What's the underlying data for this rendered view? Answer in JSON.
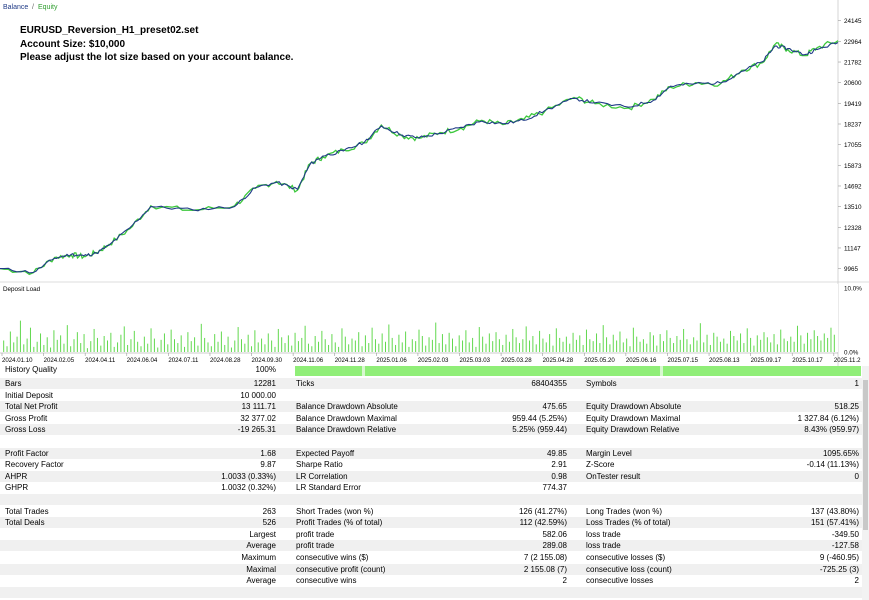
{
  "chart_data": [
    {
      "type": "line",
      "name_label": "balance-equity-chart",
      "legend": [
        "Balance",
        "Equity"
      ],
      "legend_colors": [
        "#1f3a86",
        "#3cc83c"
      ],
      "legend_separator": "/",
      "y_ticks": [
        9965,
        11147,
        12328,
        13510,
        14692,
        15873,
        17055,
        18237,
        19419,
        20600,
        21782,
        22964,
        24145
      ],
      "ylim": [
        9200,
        24700
      ],
      "x_labels": [
        "2024.01.10",
        "2024.02.05",
        "2024.04.11",
        "2024.06.04",
        "2024.07.11",
        "2024.08.28",
        "2024.09.30",
        "2024.11.06",
        "2024.11.28",
        "2025.01.06",
        "2025.02.03",
        "2025.03.03",
        "2025.03.28",
        "2025.04.28",
        "2025.05.20",
        "2025.06.16",
        "2025.07.15",
        "2025.08.13",
        "2025.09.17",
        "2025.10.17",
        "2025.11.2"
      ],
      "balance": [
        [
          0,
          9965
        ],
        [
          0.04,
          9750
        ],
        [
          0.065,
          10560
        ],
        [
          0.085,
          10780
        ],
        [
          0.1,
          10700
        ],
        [
          0.115,
          10850
        ],
        [
          0.13,
          11300
        ],
        [
          0.155,
          12300
        ],
        [
          0.18,
          13510
        ],
        [
          0.23,
          13330
        ],
        [
          0.28,
          13520
        ],
        [
          0.305,
          14600
        ],
        [
          0.33,
          14900
        ],
        [
          0.355,
          14500
        ],
        [
          0.37,
          15930
        ],
        [
          0.385,
          16400
        ],
        [
          0.41,
          16700
        ],
        [
          0.435,
          17200
        ],
        [
          0.455,
          18130
        ],
        [
          0.48,
          17600
        ],
        [
          0.5,
          17450
        ],
        [
          0.525,
          17700
        ],
        [
          0.55,
          18050
        ],
        [
          0.575,
          18400
        ],
        [
          0.6,
          18250
        ],
        [
          0.625,
          18450
        ],
        [
          0.65,
          19000
        ],
        [
          0.685,
          19700
        ],
        [
          0.71,
          19450
        ],
        [
          0.75,
          19200
        ],
        [
          0.78,
          19600
        ],
        [
          0.8,
          20400
        ],
        [
          0.83,
          20550
        ],
        [
          0.86,
          20580
        ],
        [
          0.885,
          21250
        ],
        [
          0.91,
          21800
        ],
        [
          0.925,
          22700
        ],
        [
          0.94,
          22550
        ],
        [
          0.96,
          22200
        ],
        [
          0.975,
          22500
        ],
        [
          1.0,
          22900
        ]
      ],
      "equity": [
        [
          0,
          9965
        ],
        [
          0.04,
          9740
        ],
        [
          0.065,
          10600
        ],
        [
          0.085,
          10750
        ],
        [
          0.1,
          10650
        ],
        [
          0.115,
          10880
        ],
        [
          0.13,
          11350
        ],
        [
          0.155,
          12250
        ],
        [
          0.18,
          13560
        ],
        [
          0.23,
          13300
        ],
        [
          0.28,
          13560
        ],
        [
          0.305,
          14560
        ],
        [
          0.33,
          14950
        ],
        [
          0.355,
          14450
        ],
        [
          0.37,
          15970
        ],
        [
          0.385,
          16350
        ],
        [
          0.41,
          16760
        ],
        [
          0.435,
          17150
        ],
        [
          0.455,
          18180
        ],
        [
          0.48,
          17550
        ],
        [
          0.5,
          17420
        ],
        [
          0.525,
          17750
        ],
        [
          0.55,
          18000
        ],
        [
          0.575,
          18450
        ],
        [
          0.6,
          18200
        ],
        [
          0.625,
          18500
        ],
        [
          0.65,
          18950
        ],
        [
          0.685,
          19750
        ],
        [
          0.71,
          19400
        ],
        [
          0.75,
          19150
        ],
        [
          0.78,
          19650
        ],
        [
          0.8,
          20350
        ],
        [
          0.83,
          20600
        ],
        [
          0.86,
          20540
        ],
        [
          0.885,
          21300
        ],
        [
          0.91,
          21750
        ],
        [
          0.925,
          22800
        ],
        [
          0.94,
          22500
        ],
        [
          0.96,
          22150
        ],
        [
          0.975,
          22600
        ],
        [
          1.0,
          23000
        ]
      ]
    },
    {
      "type": "bar",
      "name_label": "deposit-load-chart",
      "title": "Deposit Load",
      "y_ticks": [
        "10.0%",
        "0.0%"
      ],
      "ylim": [
        0,
        10
      ],
      "bar_color": "#62d84e",
      "values": [
        1.8,
        0.9,
        3.2,
        1.5,
        2.4,
        4.9,
        1.2,
        2.1,
        3.8,
        0.8,
        1.6,
        2.9,
        1.1,
        2.3,
        0.7,
        3.4,
        1.9,
        2.6,
        1.3,
        4.2,
        0.9,
        2.0,
        3.1,
        1.4,
        2.8,
        0.6,
        1.7,
        3.6,
        2.2,
        1.0,
        2.5,
        1.8,
        3.0,
        0.8,
        1.5,
        2.7,
        4.0,
        1.1,
        2.0,
        3.3,
        1.6,
        0.9,
        2.4,
        1.3,
        3.7,
        2.1,
        0.7,
        1.9,
        2.9,
        1.2,
        3.5,
        2.0,
        1.4,
        2.6,
        0.8,
        3.1,
        1.7,
        2.3,
        1.0,
        4.4,
        2.2,
        1.5,
        0.9,
        2.8,
        1.6,
        3.2,
        1.1,
        2.4,
        0.7,
        1.8,
        3.9,
        2.0,
        1.3,
        2.7,
        0.9,
        3.4,
        1.5,
        2.1,
        1.2,
        2.9,
        1.8,
        0.8,
        3.6,
        2.3,
        1.4,
        2.6,
        1.0,
        3.0,
        1.7,
        2.2,
        4.1,
        1.3,
        0.9,
        2.5,
        1.6,
        3.3,
        2.0,
        1.1,
        2.8,
        1.5,
        0.8,
        3.7,
        2.4,
        1.2,
        2.1,
        1.8,
        3.1,
        0.9,
        2.6,
        1.4,
        3.8,
        2.0,
        1.3,
        2.9,
        1.6,
        4.3,
        2.2,
        1.1,
        2.7,
        1.5,
        3.2,
        0.8,
        2.0,
        1.7,
        3.5,
        2.5,
        1.0,
        2.3,
        1.9,
        4.6,
        1.4,
        2.8,
        1.2,
        3.0,
        2.1,
        0.9,
        2.6,
        1.8,
        3.4,
        1.5,
        2.2,
        0.8,
        3.9,
        2.4,
        1.3,
        2.9,
        1.7,
        3.1,
        2.0,
        1.1,
        2.7,
        1.6,
        3.6,
        2.3,
        1.4,
        2.0,
        4.0,
        1.8,
        2.5,
        1.2,
        3.3,
        2.1,
        1.5,
        2.8,
        1.0,
        3.7,
        2.2,
        1.6,
        2.4,
        1.3,
        3.0,
        1.9,
        2.6,
        1.1,
        3.5,
        2.0,
        1.7,
        2.9,
        1.4,
        4.2,
        2.3,
        1.2,
        2.7,
        1.8,
        3.2,
        1.5,
        2.1,
        0.9,
        3.8,
        2.4,
        1.6,
        2.0,
        1.3,
        3.1,
        2.6,
        1.0,
        2.8,
        1.7,
        3.4,
        2.2,
        1.4,
        2.5,
        1.9,
        3.6,
        2.0,
        1.2,
        2.3,
        1.8,
        4.5,
        1.5,
        2.7,
        1.1,
        3.0,
        2.4,
        1.6,
        2.1,
        1.3,
        3.3,
        2.5,
        1.8,
        2.9,
        1.4,
        3.7,
        2.2,
        1.0,
        2.6,
        1.9,
        3.1,
        2.3,
        1.5,
        2.8,
        1.2,
        3.5,
        2.1,
        1.7,
        2.4,
        1.6,
        4.1,
        2.6,
        1.3,
        3.0,
        2.0,
        3.4,
        2.5,
        1.8,
        2.9,
        2.2,
        3.8,
        2.7
      ]
    }
  ],
  "chart_header": {
    "legend_balance": "Balance",
    "legend_sep": "/",
    "legend_equity": "Equity"
  },
  "overlay": {
    "line1": "EURUSD_Reversion_H1_preset02.set",
    "line2": "Account Size: $10,000",
    "line3": "Please adjust the lot size based on your account balance."
  },
  "report": {
    "history_quality_label": "History Quality",
    "history_quality_value": "100%",
    "rows": [
      {
        "shade": true,
        "l1": "Bars",
        "v1": "12281",
        "l2": "Ticks",
        "v2": "68404355",
        "l3": "Symbols",
        "v3": "1"
      },
      {
        "shade": false,
        "l1": "Initial Deposit",
        "v1": "10 000.00",
        "l2": "",
        "v2": "",
        "l3": "",
        "v3": ""
      },
      {
        "shade": true,
        "l1": "Total Net Profit",
        "v1": "13 111.71",
        "l2": "Balance Drawdown Absolute",
        "v2": "475.65",
        "l3": "Equity Drawdown Absolute",
        "v3": "518.25"
      },
      {
        "shade": false,
        "l1": "Gross Profit",
        "v1": "32 377.02",
        "l2": "Balance Drawdown Maximal",
        "v2": "959.44 (5.25%)",
        "l3": "Equity Drawdown Maximal",
        "v3": "1 327.84 (6.12%)"
      },
      {
        "shade": true,
        "l1": "Gross Loss",
        "v1": "-19 265.31",
        "l2": "Balance Drawdown Relative",
        "v2": "5.25% (959.44)",
        "l3": "Equity Drawdown Relative",
        "v3": "8.43% (959.97)"
      },
      {
        "shade": false,
        "l1": "",
        "v1": "",
        "l2": "",
        "v2": "",
        "l3": "",
        "v3": ""
      },
      {
        "shade": true,
        "l1": "Profit Factor",
        "v1": "1.68",
        "l2": "Expected Payoff",
        "v2": "49.85",
        "l3": "Margin Level",
        "v3": "1095.65%"
      },
      {
        "shade": false,
        "l1": "Recovery Factor",
        "v1": "9.87",
        "l2": "Sharpe Ratio",
        "v2": "2.91",
        "l3": "Z-Score",
        "v3": "-0.14 (11.13%)"
      },
      {
        "shade": true,
        "l1": "AHPR",
        "v1": "1.0033 (0.33%)",
        "l2": "LR Correlation",
        "v2": "0.98",
        "l3": "OnTester result",
        "v3": "0"
      },
      {
        "shade": false,
        "l1": "GHPR",
        "v1": "1.0032 (0.32%)",
        "l2": "LR Standard Error",
        "v2": "774.37",
        "l3": "",
        "v3": ""
      },
      {
        "shade": true,
        "l1": "",
        "v1": "",
        "l2": "",
        "v2": "",
        "l3": "",
        "v3": ""
      },
      {
        "shade": false,
        "l1": "Total Trades",
        "v1": "263",
        "l2": "Short Trades (won %)",
        "v2": "126 (41.27%)",
        "l3": "Long Trades (won %)",
        "v3": "137 (43.80%)"
      },
      {
        "shade": true,
        "l1": "Total Deals",
        "v1": "526",
        "l2": "Profit Trades (% of total)",
        "v2": "112 (42.59%)",
        "l3": "Loss Trades (% of total)",
        "v3": "151 (57.41%)"
      },
      {
        "shade": false,
        "l1": "",
        "v1": "Largest",
        "l2": "profit trade",
        "v2": "582.06",
        "l3": "loss trade",
        "v3": "-349.50"
      },
      {
        "shade": true,
        "l1": "",
        "v1": "Average",
        "l2": "profit trade",
        "v2": "289.08",
        "l3": "loss trade",
        "v3": "-127.58"
      },
      {
        "shade": false,
        "l1": "",
        "v1": "Maximum",
        "l2": "consecutive wins ($)",
        "v2": "7 (2 155.08)",
        "l3": "consecutive losses ($)",
        "v3": "9 (-460.95)"
      },
      {
        "shade": true,
        "l1": "",
        "v1": "Maximal",
        "l2": "consecutive profit (count)",
        "v2": "2 155.08 (7)",
        "l3": "consecutive loss (count)",
        "v3": "-725.25 (3)"
      },
      {
        "shade": false,
        "l1": "",
        "v1": "Average",
        "l2": "consecutive wins",
        "v2": "2",
        "l3": "consecutive losses",
        "v3": "2"
      },
      {
        "shade": true,
        "l1": "",
        "v1": "",
        "l2": "",
        "v2": "",
        "l3": "",
        "v3": ""
      }
    ]
  }
}
